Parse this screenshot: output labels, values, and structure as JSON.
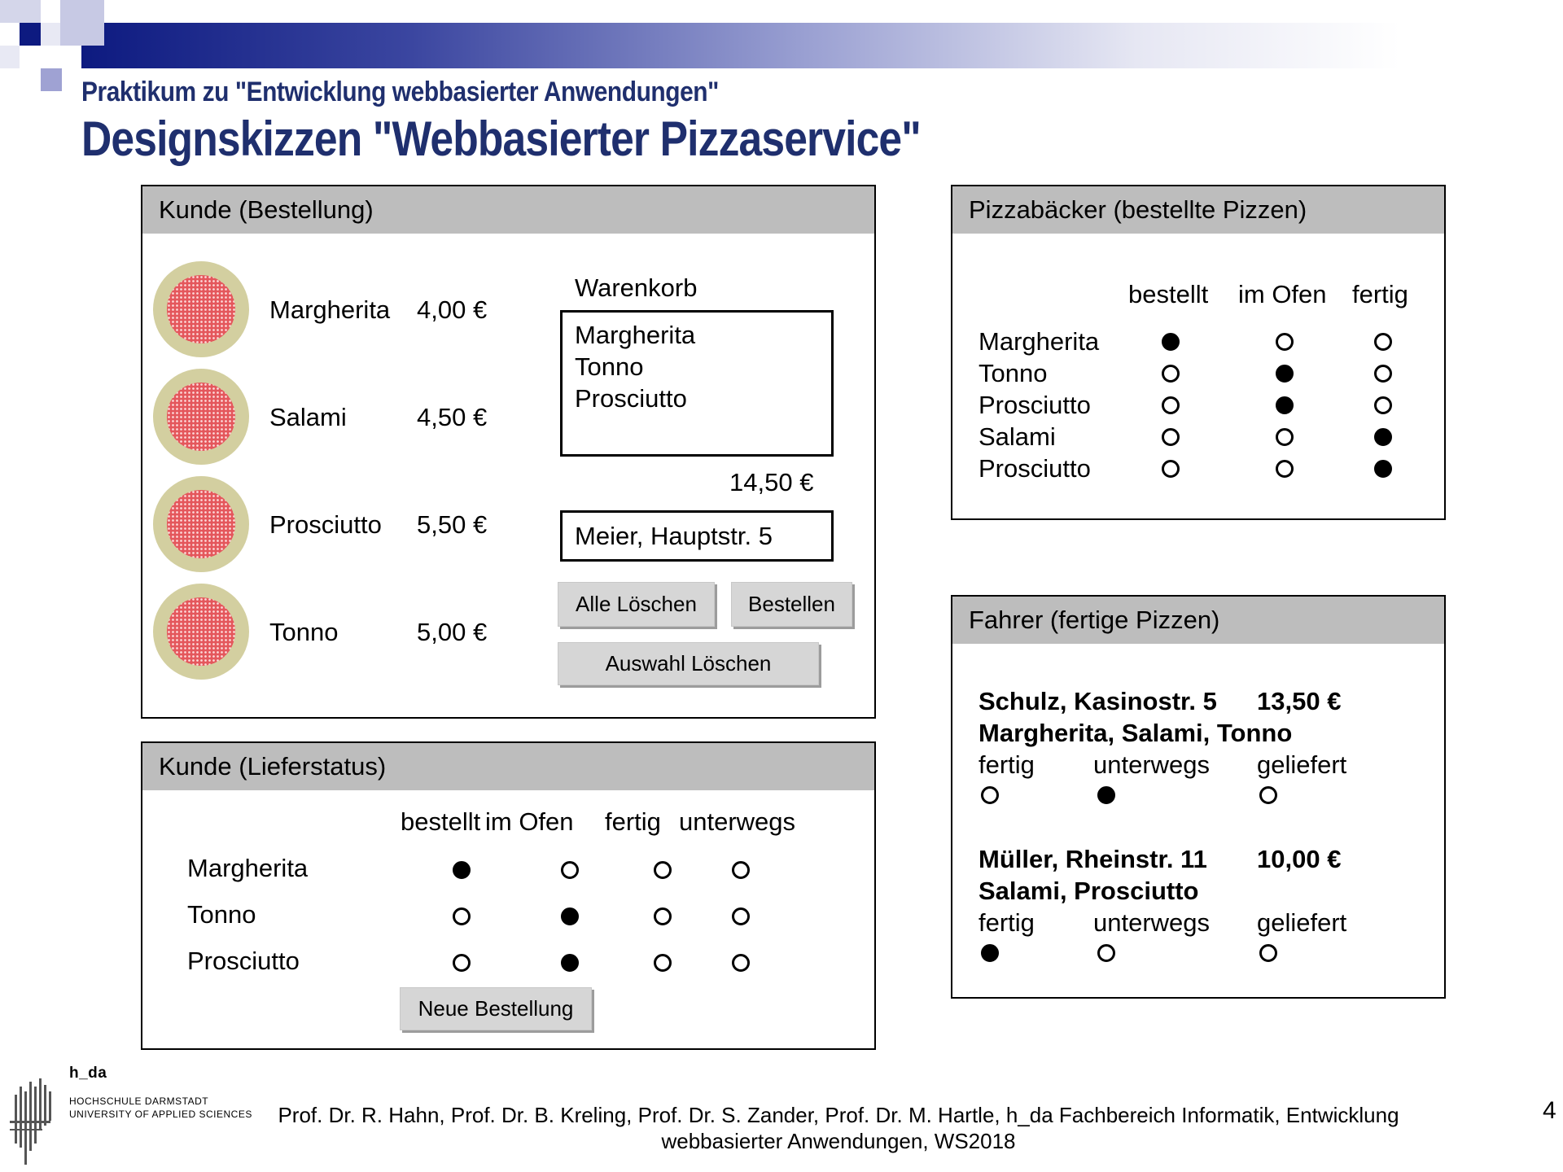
{
  "header": {
    "subtitle": "Praktikum zu \"Entwicklung webbasierter Anwendungen\"",
    "title": "Designskizzen \"Webbasierter Pizzaservice\""
  },
  "colors": {
    "title": "#1f2f6e",
    "band_start": "#0d1a80",
    "panel_head": "#bdbdbd",
    "pizza_sauce": "#e4575c",
    "pizza_crust": "#d3cfa0"
  },
  "order": {
    "heading": "Kunde (Bestellung)",
    "menu": [
      {
        "name": "Margherita",
        "price": "4,00 €"
      },
      {
        "name": "Salami",
        "price": "4,50 €"
      },
      {
        "name": "Prosciutto",
        "price": "5,50 €"
      },
      {
        "name": "Tonno",
        "price": "5,00 €"
      }
    ],
    "cart_label": "Warenkorb",
    "cart_items": [
      "Margherita",
      "Tonno",
      "Prosciutto"
    ],
    "total": "14,50 €",
    "address": "Meier, Hauptstr. 5",
    "btn_clear_all": "Alle Löschen",
    "btn_order": "Bestellen",
    "btn_clear_selection": "Auswahl Löschen"
  },
  "status": {
    "heading": "Kunde (Lieferstatus)",
    "columns": [
      "bestellt",
      "im Ofen",
      "fertig",
      "unterwegs"
    ],
    "rows": [
      {
        "name": "Margherita",
        "state": [
          1,
          0,
          0,
          0
        ]
      },
      {
        "name": "Tonno",
        "state": [
          0,
          1,
          0,
          0
        ]
      },
      {
        "name": "Prosciutto",
        "state": [
          0,
          1,
          0,
          0
        ]
      }
    ],
    "btn_new_order": "Neue Bestellung"
  },
  "baker": {
    "heading": "Pizzabäcker (bestellte Pizzen)",
    "columns": [
      "bestellt",
      "im Ofen",
      "fertig"
    ],
    "rows": [
      {
        "name": "Margherita",
        "state": [
          1,
          0,
          0
        ]
      },
      {
        "name": "Tonno",
        "state": [
          0,
          1,
          0
        ]
      },
      {
        "name": "Prosciutto",
        "state": [
          0,
          1,
          0
        ]
      },
      {
        "name": "Salami",
        "state": [
          0,
          0,
          1
        ]
      },
      {
        "name": "Prosciutto",
        "state": [
          0,
          0,
          1
        ]
      }
    ]
  },
  "driver": {
    "heading": "Fahrer (fertige Pizzen)",
    "deliveries": [
      {
        "address": "Schulz, Kasinostr. 5",
        "amount": "13,50 €",
        "pizzas": "Margherita, Salami, Tonno",
        "labels": [
          "fertig",
          "unterwegs",
          "geliefert"
        ],
        "state": [
          0,
          1,
          0
        ]
      },
      {
        "address": "Müller, Rheinstr. 11",
        "amount": "10,00 €",
        "pizzas": "Salami, Prosciutto",
        "labels": [
          "fertig",
          "unterwegs",
          "geliefert"
        ],
        "state": [
          1,
          0,
          0
        ]
      }
    ]
  },
  "logo": {
    "brand": "h_da",
    "line1": "HOCHSCHULE DARMSTADT",
    "line2": "UNIVERSITY OF APPLIED SCIENCES"
  },
  "footer": {
    "line1": "Prof. Dr. R. Hahn, Prof. Dr. B. Kreling, Prof. Dr. S. Zander, Prof. Dr. M. Hartle, h_da Fachbereich Informatik, Entwicklung",
    "line2": "webbasierter Anwendungen, WS2018"
  },
  "page_number": "4"
}
